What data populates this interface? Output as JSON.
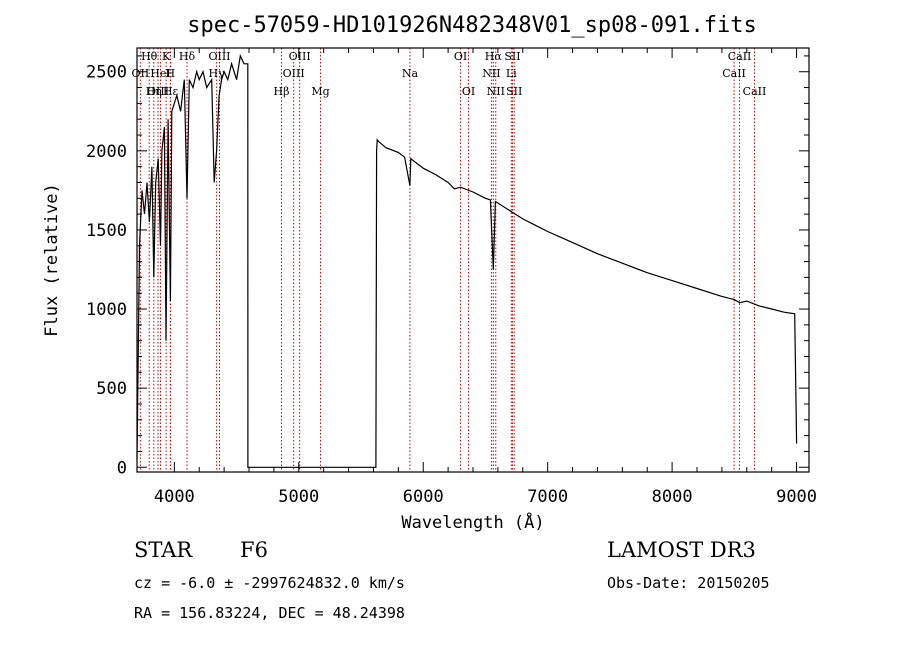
{
  "chart_data": {
    "type": "line",
    "title": "spec-57059-HD101926N482348V01_sp08-091.fits",
    "xlabel": "Wavelength (Å)",
    "ylabel": "Flux (relative)",
    "xlim": [
      3700,
      9100
    ],
    "ylim": [
      -30,
      2650
    ],
    "xticks": [
      4000,
      5000,
      6000,
      7000,
      8000,
      9000
    ],
    "yticks": [
      0,
      500,
      1000,
      1500,
      2000,
      2500
    ],
    "series": [
      {
        "name": "spectrum",
        "x": [
          3700,
          3720,
          3740,
          3760,
          3780,
          3800,
          3820,
          3835,
          3850,
          3870,
          3889,
          3900,
          3920,
          3933,
          3950,
          3968,
          3980,
          4000,
          4020,
          4050,
          4080,
          4102,
          4120,
          4150,
          4180,
          4200,
          4230,
          4260,
          4300,
          4320,
          4340,
          4360,
          4380,
          4400,
          4430,
          4460,
          4500,
          4530,
          4560,
          4590,
          4591,
          4600,
          5620,
          5625,
          5630,
          5640,
          5700,
          5800,
          5850,
          5893,
          5900,
          5950,
          6000,
          6100,
          6200,
          6250,
          6300,
          6400,
          6500,
          6540,
          6563,
          6580,
          6600,
          6700,
          6800,
          6900,
          7000,
          7200,
          7400,
          7600,
          7800,
          8000,
          8200,
          8400,
          8500,
          8542,
          8600,
          8700,
          8800,
          8900,
          8985,
          9000
        ],
        "y": [
          50,
          1400,
          1750,
          1600,
          1800,
          1550,
          1900,
          1200,
          1800,
          1950,
          1400,
          2000,
          2150,
          800,
          2200,
          1050,
          2250,
          2300,
          2350,
          2250,
          2450,
          1700,
          2450,
          2400,
          2500,
          2450,
          2500,
          2400,
          2450,
          1800,
          2000,
          2350,
          2450,
          2500,
          2450,
          2550,
          2450,
          2600,
          2550,
          2550,
          0,
          0,
          0,
          2000,
          2070,
          2060,
          2020,
          1990,
          1960,
          1780,
          1950,
          1920,
          1890,
          1850,
          1800,
          1760,
          1770,
          1740,
          1700,
          1690,
          1250,
          1680,
          1670,
          1620,
          1570,
          1530,
          1490,
          1420,
          1350,
          1290,
          1230,
          1180,
          1130,
          1080,
          1060,
          1040,
          1050,
          1020,
          1000,
          980,
          970,
          150
        ]
      }
    ],
    "lines": [
      {
        "label": "Hθ",
        "wave": 3798,
        "row": 0
      },
      {
        "label": "OII",
        "wave": 3727,
        "row": 1
      },
      {
        "label": "OIII",
        "wave": 3869,
        "row": 2
      },
      {
        "label": "K",
        "wave": 3934,
        "row": 0
      },
      {
        "label": "HeI",
        "wave": 3889,
        "row": 1
      },
      {
        "label": "Hη",
        "wave": 3835,
        "row": 2
      },
      {
        "label": "H",
        "wave": 3968,
        "row": 1
      },
      {
        "label": "Hε",
        "wave": 3970,
        "row": 2
      },
      {
        "label": "Hδ",
        "wave": 4102,
        "row": 0
      },
      {
        "label": "OIII",
        "wave": 4363,
        "row": 0
      },
      {
        "label": "Hγ",
        "wave": 4340,
        "row": 1
      },
      {
        "label": "Hβ",
        "wave": 4861,
        "row": 2
      },
      {
        "label": "OIII",
        "wave": 4959,
        "row": 1
      },
      {
        "label": "OIII",
        "wave": 5007,
        "row": 0
      },
      {
        "label": "Mg",
        "wave": 5175,
        "row": 2
      },
      {
        "label": "Na",
        "wave": 5893,
        "row": 1
      },
      {
        "label": "OI",
        "wave": 6300,
        "row": 0
      },
      {
        "label": "OI",
        "wave": 6364,
        "row": 2
      },
      {
        "label": "Hα",
        "wave": 6563,
        "row": 0
      },
      {
        "label": "NII",
        "wave": 6548,
        "row": 1
      },
      {
        "label": "NII",
        "wave": 6583,
        "row": 2
      },
      {
        "label": "SII",
        "wave": 6717,
        "row": 0
      },
      {
        "label": "Li",
        "wave": 6708,
        "row": 1
      },
      {
        "label": "SII",
        "wave": 6731,
        "row": 2
      },
      {
        "label": "CaII",
        "wave": 8542,
        "row": 0
      },
      {
        "label": "CaII",
        "wave": 8498,
        "row": 1
      },
      {
        "label": "CaII",
        "wave": 8662,
        "row": 2
      }
    ]
  },
  "info": {
    "object_class": "STAR",
    "subclass": "F6",
    "cz": "cz = -6.0 ± -2997624832.0 km/s",
    "coords": "RA = 156.83224, DEC =  48.24398",
    "survey": "LAMOST DR3",
    "obs_date": "Obs-Date: 20150205"
  },
  "colors": {
    "spectrum": "#000000",
    "line_marker": "#cc0000",
    "axis": "#000000",
    "background": "#ffffff"
  }
}
